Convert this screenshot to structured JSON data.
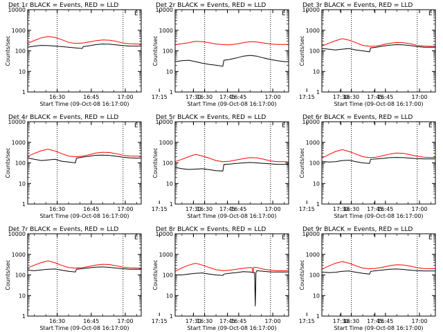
{
  "common": {
    "x_ticks": [
      "16:30",
      "16:45",
      "17:00",
      "17:15",
      "17:30",
      "17:45"
    ],
    "y_ticks": [
      "1",
      "10",
      "100",
      "1000",
      "10000"
    ],
    "xlabel": "Start Time (09-Oct-08 16:17:00)",
    "ylabel": "Counts/sec",
    "corner_mark": "E",
    "colors": {
      "events": "#000000",
      "lld": "#ff0000"
    }
  },
  "chart_data": [
    {
      "type": "line",
      "title": "Det 1r BLACK = Events, RED = LLD",
      "x_range_min": [
        0,
        50
      ],
      "y_log": true,
      "ylim": [
        1,
        10000
      ],
      "vlines_min": [
        13,
        42
      ],
      "series": [
        {
          "name": "Events",
          "x": [
            0,
            3,
            6,
            9,
            12,
            15,
            18,
            21,
            24,
            24.5,
            27,
            30,
            33,
            36,
            39,
            42,
            45,
            48,
            50
          ],
          "y": [
            150,
            170,
            185,
            180,
            170,
            160,
            150,
            140,
            130,
            160,
            175,
            200,
            215,
            210,
            195,
            180,
            170,
            170,
            170
          ]
        },
        {
          "name": "LLD",
          "x": [
            0,
            3,
            6,
            9,
            12,
            15,
            18,
            21,
            24,
            27,
            30,
            33,
            36,
            39,
            42,
            45,
            48,
            50
          ],
          "y": [
            230,
            320,
            430,
            500,
            450,
            350,
            260,
            230,
            240,
            270,
            310,
            340,
            330,
            290,
            240,
            220,
            215,
            215
          ]
        }
      ]
    },
    {
      "type": "line",
      "title": "Det 2r BLACK = Events, RED = LLD",
      "x_range_min": [
        0,
        50
      ],
      "y_log": true,
      "ylim": [
        1,
        10000
      ],
      "vlines_min": [
        13,
        42
      ],
      "series": [
        {
          "name": "Events",
          "x": [
            0,
            3,
            6,
            9,
            12,
            15,
            18,
            21,
            21.5,
            24,
            27,
            30,
            33,
            36,
            39,
            42,
            45,
            48,
            50
          ],
          "y": [
            30,
            33,
            35,
            30,
            25,
            22,
            20,
            18,
            35,
            38,
            45,
            55,
            60,
            55,
            45,
            38,
            33,
            30,
            30
          ]
        },
        {
          "name": "LLD",
          "x": [
            0,
            3,
            6,
            9,
            12,
            15,
            18,
            21,
            24,
            27,
            30,
            33,
            36,
            39,
            42,
            45,
            48,
            50
          ],
          "y": [
            200,
            220,
            250,
            290,
            280,
            250,
            215,
            200,
            195,
            215,
            250,
            280,
            270,
            240,
            215,
            205,
            205,
            205
          ]
        }
      ]
    },
    {
      "type": "line",
      "title": "Det 3r BLACK = Events, RED = LLD",
      "x_range_min": [
        0,
        50
      ],
      "y_log": true,
      "ylim": [
        1,
        10000
      ],
      "vlines_min": [
        13,
        42
      ],
      "series": [
        {
          "name": "Events",
          "x": [
            0,
            3,
            6,
            9,
            12,
            15,
            18,
            21,
            21.5,
            24,
            27,
            30,
            33,
            36,
            39,
            42,
            45,
            48,
            50
          ],
          "y": [
            130,
            120,
            110,
            120,
            130,
            110,
            100,
            90,
            140,
            150,
            170,
            190,
            200,
            195,
            180,
            160,
            150,
            150,
            150
          ]
        },
        {
          "name": "LLD",
          "x": [
            0,
            3,
            6,
            9,
            12,
            15,
            18,
            21,
            24,
            27,
            30,
            33,
            36,
            39,
            42,
            45,
            48,
            50
          ],
          "y": [
            170,
            230,
            310,
            390,
            330,
            250,
            185,
            165,
            170,
            200,
            235,
            255,
            250,
            220,
            185,
            170,
            165,
            165
          ]
        }
      ]
    },
    {
      "type": "line",
      "title": "Det 4r BLACK = Events, RED = LLD",
      "x_range_min": [
        0,
        50
      ],
      "y_log": true,
      "ylim": [
        1,
        10000
      ],
      "vlines_min": [
        13,
        42
      ],
      "series": [
        {
          "name": "Events",
          "x": [
            0,
            3,
            6,
            9,
            12,
            15,
            18,
            21,
            21.5,
            24,
            27,
            30,
            33,
            36,
            39,
            42,
            45,
            48,
            50
          ],
          "y": [
            170,
            150,
            130,
            140,
            150,
            120,
            110,
            100,
            170,
            190,
            210,
            235,
            240,
            230,
            210,
            190,
            175,
            170,
            170
          ]
        },
        {
          "name": "LLD",
          "x": [
            0,
            3,
            6,
            9,
            12,
            15,
            18,
            21,
            24,
            27,
            30,
            33,
            36,
            39,
            42,
            45,
            48,
            50
          ],
          "y": [
            210,
            290,
            390,
            460,
            380,
            280,
            215,
            200,
            210,
            250,
            300,
            330,
            320,
            280,
            235,
            215,
            210,
            210
          ]
        }
      ]
    },
    {
      "type": "line",
      "title": "Det 5r BLACK = Events, RED = LLD",
      "x_range_min": [
        0,
        50
      ],
      "y_log": true,
      "ylim": [
        1,
        10000
      ],
      "vlines_min": [
        13,
        42
      ],
      "series": [
        {
          "name": "Events",
          "x": [
            0,
            3,
            6,
            9,
            12,
            15,
            18,
            21,
            21.5,
            24,
            27,
            30,
            33,
            36,
            39,
            42,
            45,
            48,
            50
          ],
          "y": [
            60,
            52,
            48,
            50,
            52,
            47,
            42,
            40,
            85,
            88,
            95,
            100,
            105,
            100,
            95,
            90,
            85,
            85,
            85
          ]
        },
        {
          "name": "LLD",
          "x": [
            0,
            3,
            6,
            9,
            12,
            15,
            18,
            21,
            24,
            27,
            30,
            33,
            36,
            39,
            42,
            45,
            48,
            50
          ],
          "y": [
            115,
            150,
            200,
            260,
            215,
            170,
            130,
            115,
            120,
            140,
            160,
            180,
            175,
            150,
            125,
            115,
            115,
            115
          ]
        }
      ]
    },
    {
      "type": "line",
      "title": "Det 6r BLACK = Events, RED = LLD",
      "x_range_min": [
        0,
        50
      ],
      "y_log": true,
      "ylim": [
        1,
        10000
      ],
      "vlines_min": [
        13,
        42
      ],
      "series": [
        {
          "name": "Events",
          "x": [
            0,
            3,
            6,
            9,
            12,
            15,
            18,
            21,
            21.5,
            24,
            27,
            30,
            33,
            36,
            39,
            42,
            45,
            48,
            50
          ],
          "y": [
            120,
            110,
            115,
            130,
            135,
            115,
            100,
            95,
            150,
            155,
            165,
            180,
            185,
            180,
            170,
            160,
            155,
            155,
            155
          ]
        },
        {
          "name": "LLD",
          "x": [
            0,
            3,
            6,
            9,
            12,
            15,
            18,
            21,
            24,
            27,
            30,
            33,
            36,
            39,
            42,
            45,
            48,
            50
          ],
          "y": [
            170,
            250,
            360,
            440,
            360,
            270,
            200,
            180,
            190,
            225,
            270,
            300,
            290,
            250,
            210,
            190,
            185,
            185
          ]
        }
      ]
    },
    {
      "type": "line",
      "title": "Det 7r BLACK = Events, RED = LLD",
      "x_range_min": [
        0,
        50
      ],
      "y_log": true,
      "ylim": [
        1,
        10000
      ],
      "vlines_min": [
        13,
        42
      ],
      "series": [
        {
          "name": "Events",
          "x": [
            0,
            3,
            6,
            9,
            12,
            15,
            18,
            21,
            21.5,
            24,
            27,
            30,
            33,
            36,
            39,
            42,
            45,
            48,
            50
          ],
          "y": [
            170,
            160,
            175,
            190,
            195,
            170,
            150,
            140,
            190,
            200,
            220,
            240,
            245,
            235,
            215,
            200,
            190,
            190,
            190
          ]
        },
        {
          "name": "LLD",
          "x": [
            0,
            3,
            6,
            9,
            12,
            15,
            18,
            21,
            24,
            27,
            30,
            33,
            36,
            39,
            42,
            45,
            48,
            50
          ],
          "y": [
            220,
            300,
            400,
            480,
            390,
            290,
            230,
            215,
            225,
            260,
            300,
            330,
            320,
            280,
            240,
            220,
            215,
            215
          ]
        }
      ]
    },
    {
      "type": "line",
      "title": "Det 8r BLACK = Events, RED = LLD",
      "x_range_min": [
        0,
        50
      ],
      "y_log": true,
      "ylim": [
        1,
        10000
      ],
      "vlines_min": [
        13,
        42
      ],
      "series": [
        {
          "name": "Events",
          "x": [
            0,
            3,
            6,
            9,
            12,
            15,
            18,
            21,
            21.5,
            24,
            27,
            30,
            33,
            35,
            35.3,
            35.6,
            36,
            39,
            42,
            45,
            48,
            50
          ],
          "y": [
            100,
            100,
            110,
            120,
            125,
            110,
            100,
            95,
            110,
            120,
            130,
            145,
            140,
            130,
            3,
            130,
            160,
            150,
            140,
            140,
            140,
            140
          ]
        },
        {
          "name": "LLD",
          "x": [
            0,
            3,
            6,
            9,
            12,
            15,
            18,
            21,
            24,
            27,
            30,
            33,
            34,
            34.3,
            34.6,
            36,
            39,
            42,
            45,
            48,
            50
          ],
          "y": [
            150,
            220,
            300,
            370,
            300,
            230,
            180,
            160,
            170,
            190,
            210,
            230,
            220,
            120,
            230,
            230,
            190,
            170,
            160,
            160,
            160
          ]
        }
      ]
    },
    {
      "type": "line",
      "title": "Det 9r BLACK = Events, RED = LLD",
      "x_range_min": [
        0,
        50
      ],
      "y_log": true,
      "ylim": [
        1,
        10000
      ],
      "vlines_min": [
        13,
        42
      ],
      "series": [
        {
          "name": "Events",
          "x": [
            0,
            3,
            6,
            9,
            12,
            15,
            18,
            21,
            21.5,
            24,
            27,
            30,
            33,
            36,
            39,
            42,
            45,
            48,
            50
          ],
          "y": [
            140,
            130,
            135,
            150,
            155,
            135,
            120,
            110,
            150,
            160,
            175,
            190,
            195,
            185,
            170,
            160,
            155,
            155,
            155
          ]
        },
        {
          "name": "LLD",
          "x": [
            0,
            3,
            6,
            9,
            12,
            15,
            18,
            21,
            24,
            27,
            30,
            33,
            36,
            39,
            42,
            45,
            48,
            50
          ],
          "y": [
            190,
            270,
            370,
            450,
            370,
            280,
            215,
            200,
            210,
            240,
            285,
            315,
            305,
            265,
            225,
            205,
            200,
            200
          ]
        }
      ]
    }
  ]
}
